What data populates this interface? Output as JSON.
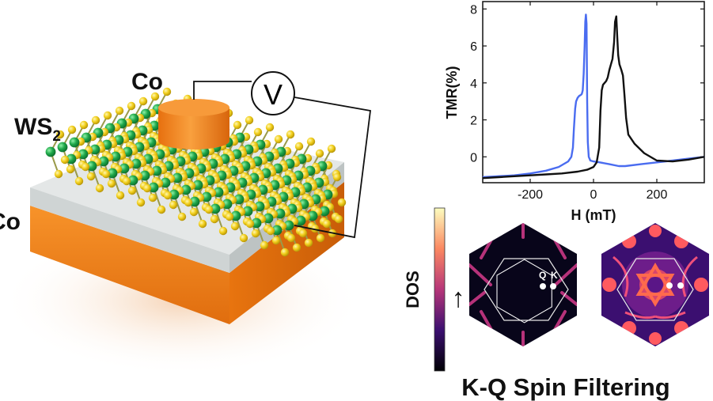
{
  "device": {
    "top_contact_label": "Co",
    "bottom_contact_label": "Co",
    "layer_label_main": "WS",
    "layer_label_sub": "2",
    "meter_symbol": "V",
    "colors": {
      "electrode": "#f07d18",
      "tungsten": "#1fa84a",
      "sulfur": "#f2cf1c",
      "substrate": "#dfe3e3"
    }
  },
  "chart_data": {
    "type": "line",
    "title": "",
    "xlabel": "H (mT)",
    "ylabel": "TMR(%)",
    "xlim": [
      -350,
      350
    ],
    "ylim": [
      -1.4,
      8.4
    ],
    "xticks": [
      -200,
      0,
      200
    ],
    "yticks": [
      0,
      2,
      4,
      6,
      8
    ],
    "grid": false,
    "series": [
      {
        "color": "#4a6cf0",
        "x": [
          -350,
          -300,
          -250,
          -200,
          -150,
          -110,
          -80,
          -70,
          -65,
          -62,
          -58,
          -55,
          -50,
          -45,
          -40,
          -37,
          -34,
          -31,
          -28,
          -26,
          -24,
          -22,
          -20,
          -18,
          -15,
          -10,
          0,
          20,
          50,
          80,
          100,
          150,
          200,
          250,
          300,
          350
        ],
        "y": [
          -1.1,
          -1.05,
          -1.0,
          -0.9,
          -0.75,
          -0.55,
          -0.25,
          0.0,
          0.5,
          1.5,
          2.6,
          3.0,
          3.2,
          3.3,
          3.35,
          3.4,
          3.6,
          4.5,
          6.0,
          7.3,
          7.7,
          7.2,
          3.0,
          0.8,
          0.0,
          -0.2,
          -0.25,
          -0.3,
          -0.4,
          -0.5,
          -0.5,
          -0.4,
          -0.3,
          -0.2,
          -0.1,
          0.0
        ]
      },
      {
        "color": "#111111",
        "x": [
          -350,
          -300,
          -250,
          -200,
          -150,
          -100,
          -50,
          -20,
          0,
          10,
          18,
          22,
          26,
          30,
          35,
          40,
          45,
          50,
          55,
          60,
          65,
          68,
          72,
          75,
          78,
          82,
          88,
          93,
          98,
          103,
          110,
          130,
          160,
          200,
          250,
          300,
          350
        ],
        "y": [
          -1.15,
          -1.1,
          -1.05,
          -1.0,
          -0.95,
          -0.9,
          -0.8,
          -0.7,
          -0.55,
          -0.3,
          0.5,
          2.5,
          3.6,
          3.9,
          4.0,
          4.1,
          4.3,
          4.7,
          5.0,
          5.3,
          6.2,
          7.3,
          7.6,
          6.5,
          5.5,
          5.0,
          4.7,
          4.4,
          3.3,
          2.1,
          1.2,
          0.7,
          0.2,
          -0.2,
          -0.25,
          -0.15,
          0.0
        ]
      }
    ]
  },
  "dos": {
    "axis_label": "DOS",
    "spin_arrow": "↑",
    "point_q": "Q",
    "point_k": "K",
    "caption": "K-Q Spin Filtering"
  }
}
